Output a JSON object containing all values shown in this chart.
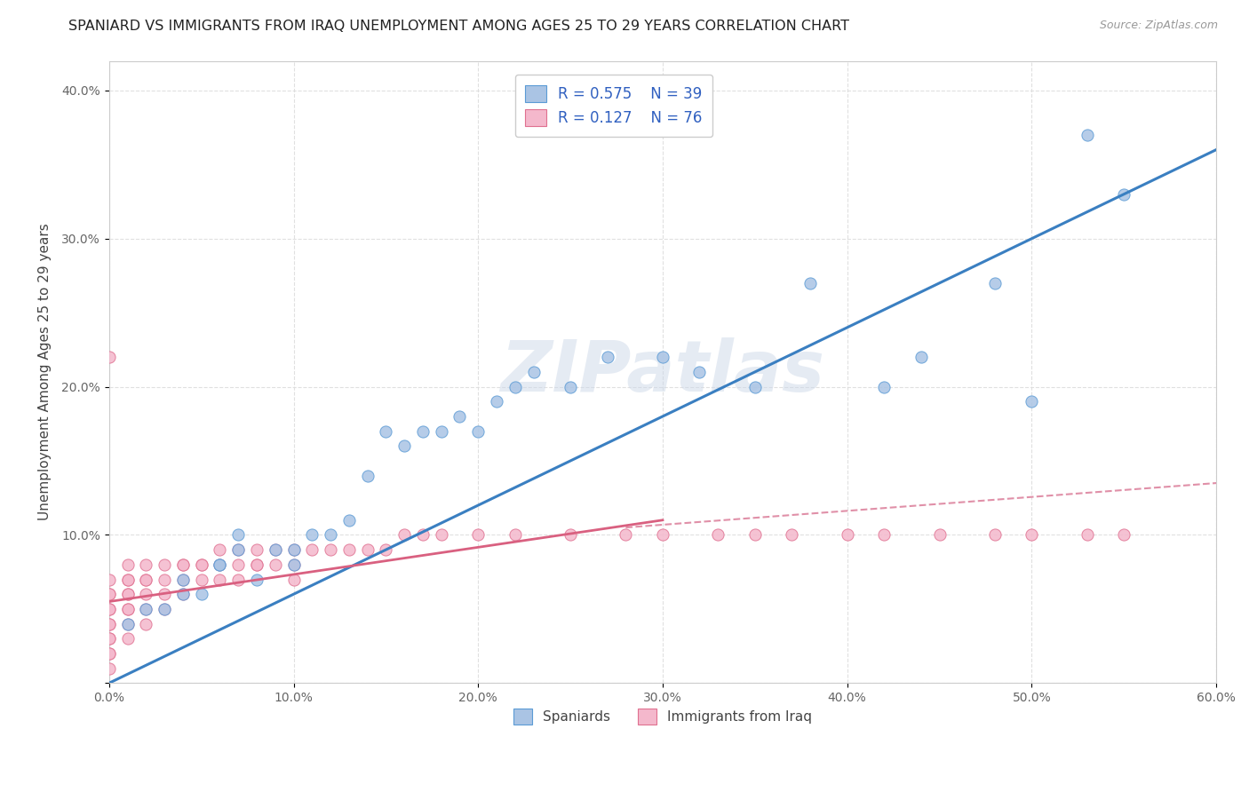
{
  "title": "SPANIARD VS IMMIGRANTS FROM IRAQ UNEMPLOYMENT AMONG AGES 25 TO 29 YEARS CORRELATION CHART",
  "source": "Source: ZipAtlas.com",
  "ylabel": "Unemployment Among Ages 25 to 29 years",
  "xlim": [
    0.0,
    0.6
  ],
  "ylim": [
    0.0,
    0.42
  ],
  "xticks": [
    0.0,
    0.1,
    0.2,
    0.3,
    0.4,
    0.5,
    0.6
  ],
  "xtick_labels": [
    "0.0%",
    "10.0%",
    "20.0%",
    "30.0%",
    "40.0%",
    "50.0%",
    "60.0%"
  ],
  "yticks": [
    0.0,
    0.1,
    0.2,
    0.3,
    0.4
  ],
  "ytick_labels": [
    "",
    "10.0%",
    "20.0%",
    "30.0%",
    "40.0%"
  ],
  "background_color": "#ffffff",
  "grid_color": "#dddddd",
  "spaniards_fill": "#aac4e4",
  "spaniards_edge": "#5b9bd5",
  "iraq_fill": "#f4b8cc",
  "iraq_edge": "#e07090",
  "spaniards_line_color": "#3a7fc1",
  "iraq_line_solid_color": "#d96080",
  "iraq_line_dash_color": "#e090a8",
  "r_spaniards": 0.575,
  "n_spaniards": 39,
  "r_iraq": 0.127,
  "n_iraq": 76,
  "watermark": "ZIPatlas",
  "legend_label_spaniards": "Spaniards",
  "legend_label_iraq": "Immigrants from Iraq",
  "spaniards_x": [
    0.01,
    0.02,
    0.03,
    0.04,
    0.04,
    0.05,
    0.06,
    0.06,
    0.07,
    0.07,
    0.08,
    0.09,
    0.1,
    0.1,
    0.11,
    0.12,
    0.13,
    0.14,
    0.15,
    0.16,
    0.17,
    0.18,
    0.19,
    0.2,
    0.21,
    0.22,
    0.23,
    0.25,
    0.27,
    0.3,
    0.32,
    0.35,
    0.38,
    0.42,
    0.44,
    0.48,
    0.5,
    0.53,
    0.55
  ],
  "spaniards_y": [
    0.04,
    0.05,
    0.05,
    0.06,
    0.07,
    0.06,
    0.08,
    0.08,
    0.09,
    0.1,
    0.07,
    0.09,
    0.08,
    0.09,
    0.1,
    0.1,
    0.11,
    0.14,
    0.17,
    0.16,
    0.17,
    0.17,
    0.18,
    0.17,
    0.19,
    0.2,
    0.21,
    0.2,
    0.22,
    0.22,
    0.21,
    0.2,
    0.27,
    0.2,
    0.22,
    0.27,
    0.19,
    0.37,
    0.33
  ],
  "iraq_x": [
    0.0,
    0.0,
    0.0,
    0.0,
    0.0,
    0.0,
    0.0,
    0.0,
    0.0,
    0.0,
    0.0,
    0.0,
    0.0,
    0.01,
    0.01,
    0.01,
    0.01,
    0.01,
    0.01,
    0.01,
    0.01,
    0.01,
    0.02,
    0.02,
    0.02,
    0.02,
    0.02,
    0.02,
    0.03,
    0.03,
    0.03,
    0.03,
    0.04,
    0.04,
    0.04,
    0.04,
    0.05,
    0.05,
    0.05,
    0.06,
    0.06,
    0.06,
    0.07,
    0.07,
    0.07,
    0.08,
    0.08,
    0.08,
    0.09,
    0.09,
    0.1,
    0.1,
    0.1,
    0.11,
    0.12,
    0.13,
    0.14,
    0.15,
    0.16,
    0.17,
    0.18,
    0.2,
    0.22,
    0.25,
    0.28,
    0.3,
    0.33,
    0.35,
    0.37,
    0.4,
    0.42,
    0.45,
    0.48,
    0.5,
    0.53,
    0.55
  ],
  "iraq_y": [
    0.01,
    0.02,
    0.02,
    0.03,
    0.03,
    0.04,
    0.04,
    0.05,
    0.05,
    0.06,
    0.06,
    0.07,
    0.22,
    0.03,
    0.04,
    0.05,
    0.05,
    0.06,
    0.06,
    0.07,
    0.07,
    0.08,
    0.04,
    0.05,
    0.06,
    0.07,
    0.07,
    0.08,
    0.05,
    0.06,
    0.07,
    0.08,
    0.06,
    0.07,
    0.08,
    0.08,
    0.07,
    0.08,
    0.08,
    0.07,
    0.08,
    0.09,
    0.07,
    0.08,
    0.09,
    0.08,
    0.08,
    0.09,
    0.08,
    0.09,
    0.07,
    0.08,
    0.09,
    0.09,
    0.09,
    0.09,
    0.09,
    0.09,
    0.1,
    0.1,
    0.1,
    0.1,
    0.1,
    0.1,
    0.1,
    0.1,
    0.1,
    0.1,
    0.1,
    0.1,
    0.1,
    0.1,
    0.1,
    0.1,
    0.1,
    0.1
  ],
  "spaniards_trendline_x": [
    0.0,
    0.6
  ],
  "spaniards_trendline_y": [
    0.0,
    0.36
  ],
  "iraq_solid_trendline_x": [
    0.0,
    0.3
  ],
  "iraq_solid_trendline_y": [
    0.055,
    0.11
  ],
  "iraq_dashed_trendline_x": [
    0.28,
    0.6
  ],
  "iraq_dashed_trendline_y": [
    0.105,
    0.135
  ]
}
